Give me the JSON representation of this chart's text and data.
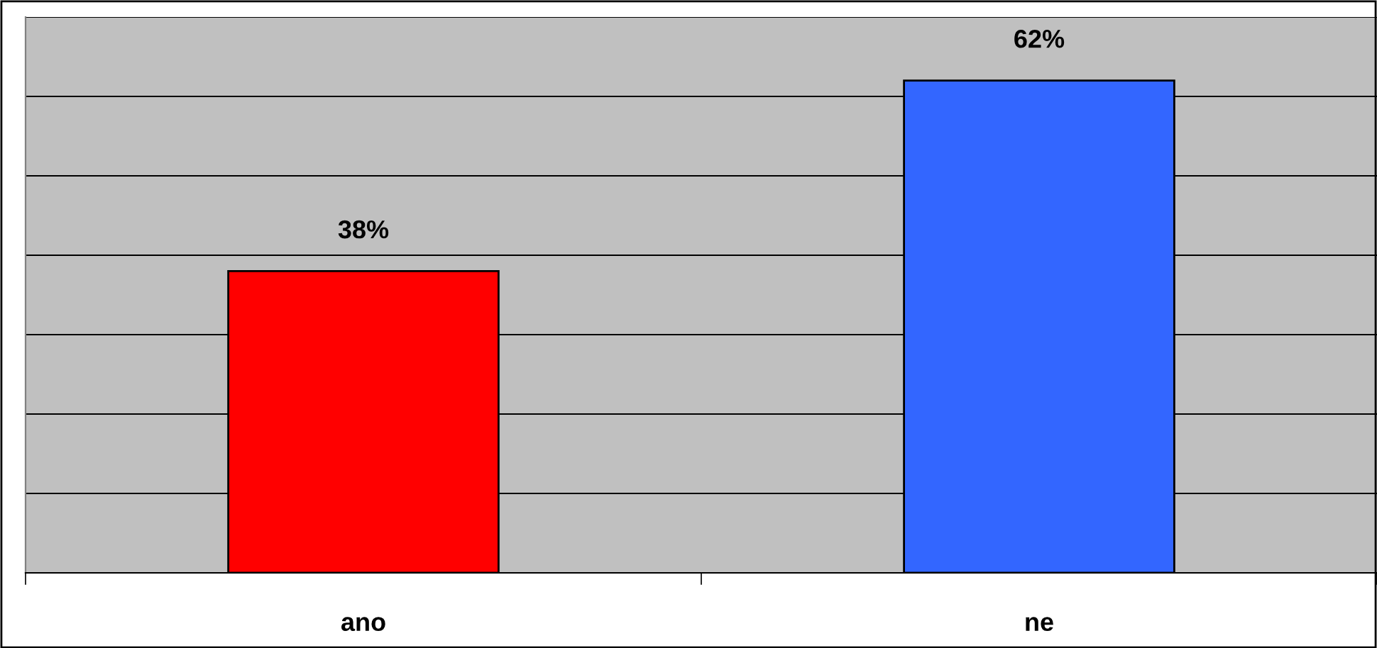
{
  "chart_data": {
    "type": "bar",
    "categories": [
      "ano",
      "ne"
    ],
    "values": [
      38,
      62
    ],
    "colors": [
      "#ff0000",
      "#3366ff"
    ],
    "value_labels": [
      "38%",
      "62%"
    ],
    "ylim": [
      0,
      70
    ],
    "yticks": [
      {
        "value": 0,
        "label": null
      },
      {
        "value": 10,
        "label": null
      },
      {
        "value": 20,
        "label": null
      },
      {
        "value": 30,
        "label": null
      },
      {
        "value": 40,
        "label": null
      },
      {
        "value": 50,
        "label": null
      },
      {
        "value": 60,
        "label": null
      },
      {
        "value": 70,
        "label": null
      }
    ],
    "tick_labels": "x",
    "grid": "y"
  }
}
